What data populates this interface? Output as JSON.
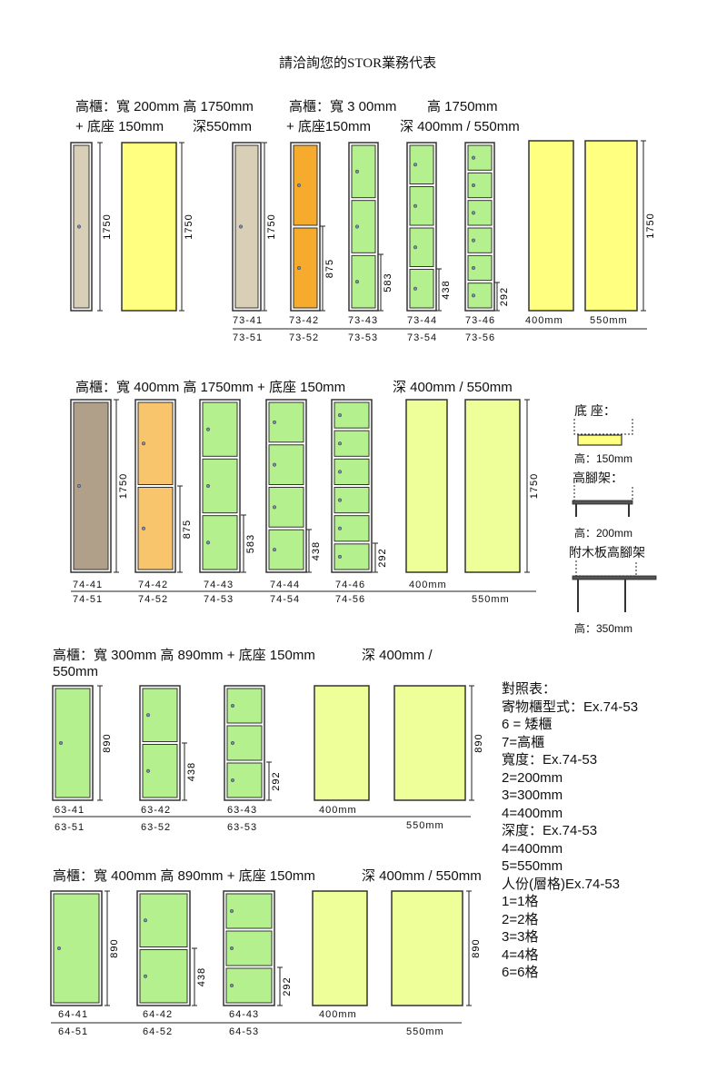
{
  "title": "請洽詢您的STOR業務代表",
  "colors": {
    "beige": "#d8cfb6",
    "taupe": "#b0a08a",
    "orange": "#f6ab2c",
    "light_orange": "#f8c46c",
    "green": "#b5f08e",
    "yellow": "#ffff80",
    "lime": "#eeff9a",
    "outline": "#333333"
  },
  "section1": {
    "header_left_1": "高櫃：寬 200mm 高 1750mm",
    "header_left_2": "+ 底座 150mm",
    "header_left_3": "深550mm",
    "header_right_1": "高櫃：寬 3 00mm",
    "header_right_2": "高 1750mm",
    "header_right_3": "+ 底座150mm",
    "header_right_4": "深 400mm / 550mm",
    "codes_top": [
      "73-41",
      "73-42",
      "73-43",
      "73-44",
      "73-46"
    ],
    "codes_bottom": [
      "73-51",
      "73-52",
      "73-53",
      "73-54",
      "73-56"
    ],
    "depth_labels": [
      "400mm",
      "550mm"
    ],
    "dims": [
      "1750",
      "1750",
      "1750",
      "875",
      "583",
      "438",
      "292",
      "1750"
    ]
  },
  "section2": {
    "header_1": "高櫃：寬 400mm 高 1750mm + 底座 150mm",
    "header_2": "深 400mm / 550mm",
    "codes_top": [
      "74-41",
      "74-42",
      "74-43",
      "74-44",
      "74-46"
    ],
    "codes_bottom": [
      "74-51",
      "74-52",
      "74-53",
      "74-54",
      "74-56"
    ],
    "depth_labels": [
      "400mm",
      "550mm"
    ],
    "dims": [
      "1750",
      "875",
      "583",
      "438",
      "292",
      "1750"
    ]
  },
  "accessories": {
    "base_label": "底 座：",
    "base_height": "高：150mm",
    "legs_label": "高腳架：",
    "legs_height": "高：200mm",
    "wood_legs_label": "附木板高腳架",
    "wood_legs_height": "高：350mm"
  },
  "section3": {
    "header_1": "高櫃：寬 300mm 高 890mm + 底座 150mm",
    "header_2": "深 400mm /",
    "header_3": "550mm",
    "codes_top": [
      "63-41",
      "63-42",
      "63-43"
    ],
    "codes_bottom": [
      "63-51",
      "63-52",
      "63-53"
    ],
    "depth_labels": [
      "400mm",
      "550mm"
    ],
    "dims": [
      "890",
      "438",
      "292",
      "890"
    ]
  },
  "section4": {
    "header_1": "高櫃：寬 400mm 高 890mm + 底座 150mm",
    "header_2": "深 400mm / 550mm",
    "codes_top": [
      "64-41",
      "64-42",
      "64-43"
    ],
    "codes_bottom": [
      "64-51",
      "64-52",
      "64-53"
    ],
    "depth_labels": [
      "400mm",
      "550mm"
    ],
    "dims": [
      "890",
      "438",
      "292",
      "890"
    ]
  },
  "legend": {
    "lines": [
      "對照表：",
      "寄物櫃型式：Ex.74-53",
      "6 = 矮櫃",
      "7=高櫃",
      "寬度：Ex.74-53",
      "2=200mm",
      "3=300mm",
      "4=400mm",
      "深度：Ex.74-53",
      "4=400mm",
      "5=550mm",
      "人份(層格)Ex.74-53",
      "1=1格",
      "2=2格",
      "3=3格",
      "4=4格",
      "6=6格"
    ]
  }
}
